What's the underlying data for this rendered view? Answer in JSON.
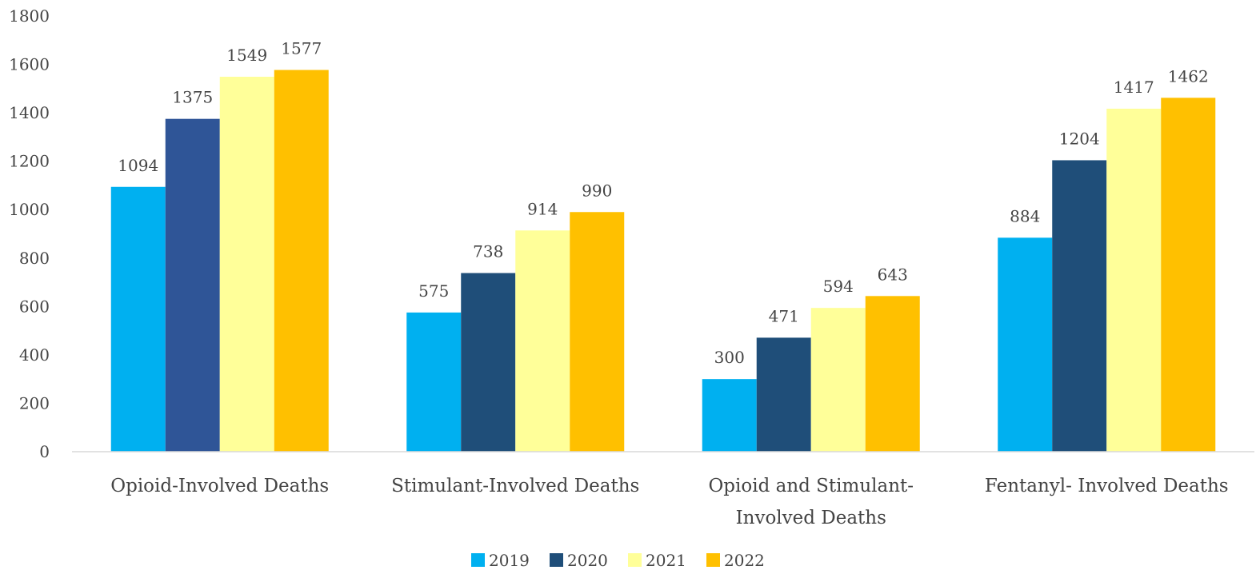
{
  "chart_data": {
    "type": "bar",
    "title": "",
    "xlabel": "",
    "ylabel": "",
    "ylim": [
      0,
      1800
    ],
    "yticks": [
      0,
      200,
      400,
      600,
      800,
      1000,
      1200,
      1400,
      1600,
      1800
    ],
    "grid": false,
    "legend_position": "bottom-center",
    "categories": [
      [
        "Opioid-Involved Deaths"
      ],
      [
        "Stimulant-Involved Deaths"
      ],
      [
        "Opioid and Stimulant-",
        "Involved Deaths"
      ],
      [
        "Fentanyl- Involved Deaths"
      ]
    ],
    "series": [
      {
        "name": "2019",
        "color": "#00B0F0",
        "values": [
          1094,
          575,
          300,
          884
        ]
      },
      {
        "name": "2020",
        "color": "#1F4E79",
        "colors": [
          "#2F5597",
          "#1F4E79",
          "#1F4E79",
          "#1F4E79"
        ],
        "values": [
          1375,
          738,
          471,
          1204
        ]
      },
      {
        "name": "2021",
        "color": "#FFFF99",
        "values": [
          1549,
          914,
          594,
          1417
        ]
      },
      {
        "name": "2022",
        "color": "#FFC000",
        "values": [
          1577,
          990,
          643,
          1462
        ]
      }
    ]
  }
}
